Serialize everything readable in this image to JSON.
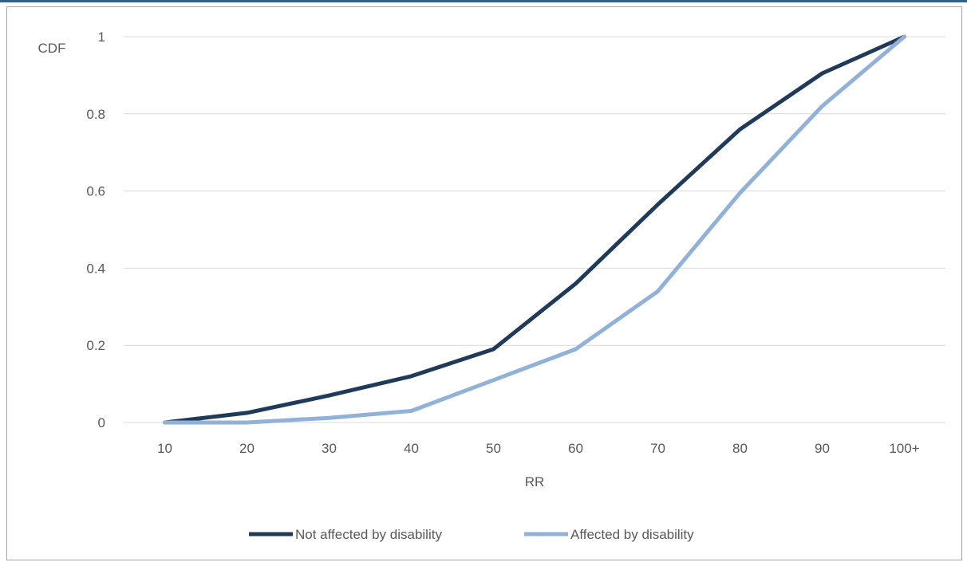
{
  "chart_data": {
    "type": "line",
    "categories": [
      "10",
      "20",
      "30",
      "40",
      "50",
      "60",
      "70",
      "80",
      "90",
      "100+"
    ],
    "series": [
      {
        "name": "Not affected by disability",
        "color": "#203a5a",
        "values": [
          0,
          0.025,
          0.07,
          0.12,
          0.19,
          0.36,
          0.565,
          0.76,
          0.905,
          1.0
        ]
      },
      {
        "name": "Affected by disability",
        "color": "#91b1d9",
        "values": [
          0,
          0,
          0.012,
          0.03,
          0.11,
          0.19,
          0.34,
          0.595,
          0.82,
          1.0
        ]
      }
    ],
    "xlabel": "RR",
    "ylabel": "CDF",
    "ylim": [
      0,
      1
    ],
    "yticks": [
      "0",
      "0.2",
      "0.4",
      "0.6",
      "0.8",
      "1"
    ],
    "grid": true,
    "legend_position": "bottom"
  }
}
